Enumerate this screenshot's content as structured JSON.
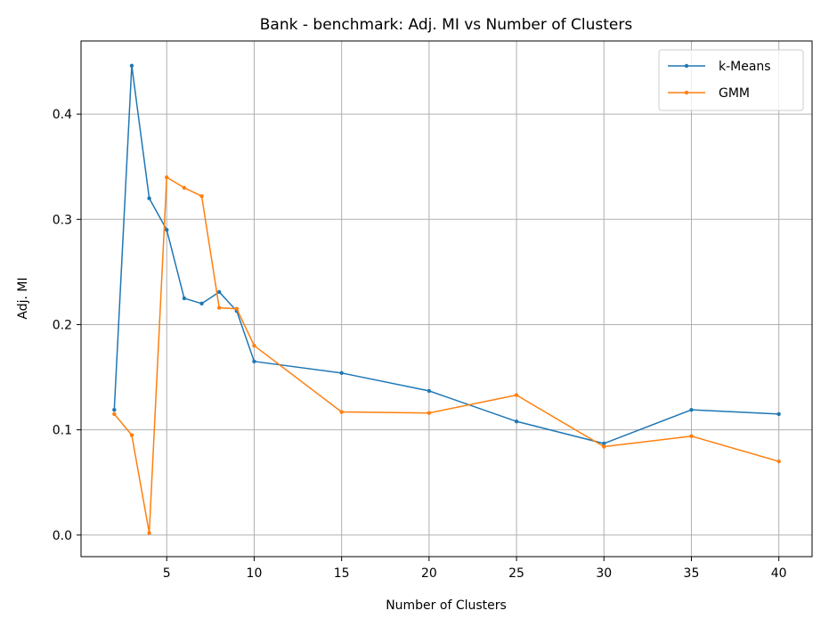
{
  "chart_data": {
    "type": "line",
    "title": "Bank - benchmark: Adj. MI vs Number of Clusters",
    "xlabel": "Number of Clusters",
    "ylabel": "Adj. MI",
    "xlim": [
      0.1,
      41.9
    ],
    "ylim": [
      -0.0205,
      0.4695
    ],
    "xticks": [
      5,
      10,
      15,
      20,
      25,
      30,
      35,
      40
    ],
    "yticks": [
      0.0,
      0.1,
      0.2,
      0.3,
      0.4
    ],
    "xtick_labels": [
      "5",
      "10",
      "15",
      "20",
      "25",
      "30",
      "35",
      "40"
    ],
    "ytick_labels": [
      "0.0",
      "0.1",
      "0.2",
      "0.3",
      "0.4"
    ],
    "grid": true,
    "legend_position": "top-right",
    "x": [
      2,
      3,
      4,
      5,
      6,
      7,
      8,
      9,
      10,
      15,
      20,
      25,
      30,
      35,
      40
    ],
    "series": [
      {
        "name": "k-Means",
        "color": "#1f77b4",
        "values": [
          0.119,
          0.446,
          0.32,
          0.29,
          0.225,
          0.22,
          0.231,
          0.213,
          0.165,
          0.154,
          0.137,
          0.108,
          0.087,
          0.119,
          0.115
        ]
      },
      {
        "name": "GMM",
        "color": "#ff7f0e",
        "values": [
          0.115,
          0.095,
          0.002,
          0.34,
          0.33,
          0.322,
          0.216,
          0.215,
          0.18,
          0.117,
          0.116,
          0.133,
          0.084,
          0.094,
          0.07
        ]
      }
    ]
  }
}
